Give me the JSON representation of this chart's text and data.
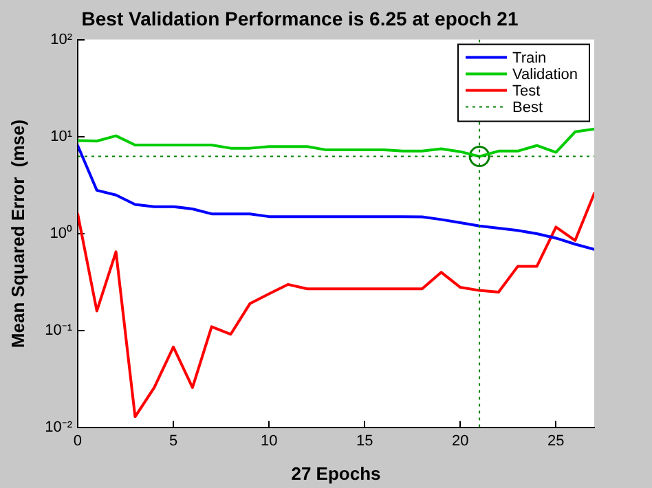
{
  "chart_data": {
    "type": "line",
    "title": "Best Validation Performance is 6.25 at epoch 21",
    "xlabel": "27 Epochs",
    "ylabel": "Mean Squared Error  (mse)",
    "x": [
      0,
      1,
      2,
      3,
      4,
      5,
      6,
      7,
      8,
      9,
      10,
      11,
      12,
      13,
      14,
      15,
      16,
      17,
      18,
      19,
      20,
      21,
      22,
      23,
      24,
      25,
      26,
      27
    ],
    "series": [
      {
        "name": "Train",
        "color": "#0000ff",
        "values": [
          8.1,
          2.8,
          2.5,
          2.0,
          1.9,
          1.9,
          1.8,
          1.6,
          1.6,
          1.6,
          1.5,
          1.5,
          1.5,
          1.5,
          1.5,
          1.5,
          1.5,
          1.5,
          1.49,
          1.4,
          1.3,
          1.2,
          1.14,
          1.08,
          1.0,
          0.9,
          0.78,
          0.69
        ]
      },
      {
        "name": "Validation",
        "color": "#00cc00",
        "values": [
          9.1,
          9.0,
          10.2,
          8.2,
          8.2,
          8.2,
          8.2,
          8.2,
          7.6,
          7.6,
          7.9,
          7.9,
          7.9,
          7.3,
          7.3,
          7.3,
          7.3,
          7.1,
          7.1,
          7.5,
          7.0,
          6.25,
          7.1,
          7.1,
          8.1,
          6.9,
          11.2,
          12
        ]
      },
      {
        "name": "Test",
        "color": "#ff0000",
        "values": [
          1.6,
          0.16,
          0.65,
          0.013,
          0.026,
          0.068,
          0.026,
          0.11,
          0.092,
          0.19,
          0.24,
          0.3,
          0.27,
          0.27,
          0.27,
          0.27,
          0.27,
          0.27,
          0.27,
          0.4,
          0.28,
          0.26,
          0.25,
          0.46,
          0.46,
          1.17,
          0.85,
          2.6
        ]
      },
      {
        "type": "scatter",
        "color": "#008000",
        "marker": "circle",
        "x": [
          21
        ],
        "values": [
          6.25
        ]
      }
    ],
    "ref_lines": [
      {
        "axis": "x",
        "value": 21,
        "label": "Best",
        "color": "#008000",
        "line_style": "dotted"
      },
      {
        "axis": "y",
        "value": 6.25,
        "color": "#008000",
        "line_style": "dotted"
      }
    ],
    "log": "y",
    "xlim": [
      0,
      27
    ],
    "xticks": [
      0,
      5,
      10,
      15,
      20,
      25
    ],
    "ylim": [
      0.01,
      100
    ],
    "yticks": [
      {
        "value": 0.01,
        "label": "10⁻²"
      },
      {
        "value": 0.1,
        "label": "10⁻¹"
      },
      {
        "value": 1,
        "label": "10⁰"
      },
      {
        "value": 10,
        "label": "10¹"
      },
      {
        "value": 100,
        "label": "10²"
      }
    ],
    "grid": false,
    "legend": "top right",
    "line_style": "solid",
    "marker": "none"
  }
}
